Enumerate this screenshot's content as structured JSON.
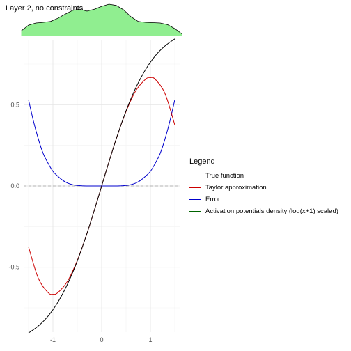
{
  "chart_data": {
    "type": "line",
    "title": "Layer 2, no constraints",
    "xlabel": "",
    "ylabel": "",
    "xlim": [
      -1.6,
      1.6
    ],
    "ylim": [
      -0.9,
      0.9
    ],
    "xticks": [
      -1,
      0,
      1
    ],
    "xtick_labels": [
      "-1",
      "0",
      "1"
    ],
    "yticks": [
      -0.5,
      0.0,
      0.5
    ],
    "ytick_labels": [
      "-0.5",
      "0.0",
      "0.5"
    ],
    "grid": true,
    "reference_line": {
      "y": 0,
      "style": "dashed"
    },
    "legend": {
      "title": "Legend",
      "placement": "right",
      "entries": [
        {
          "label": "True function",
          "color": "#000000"
        },
        {
          "label": "Taylor approximation",
          "color": "#cc0000"
        },
        {
          "label": "Error",
          "color": "#0000cc"
        },
        {
          "label": "Activation potentials density (log(x+1) scaled)",
          "color": "#006400"
        }
      ]
    },
    "series": [
      {
        "name": "True function",
        "color": "#000000",
        "x": [
          -1.5,
          -1.3,
          -1.1,
          -0.9,
          -0.7,
          -0.5,
          -0.3,
          -0.1,
          0.0,
          0.1,
          0.3,
          0.5,
          0.7,
          0.9,
          1.1,
          1.3,
          1.5
        ],
        "y": [
          -0.905,
          -0.862,
          -0.801,
          -0.716,
          -0.604,
          -0.462,
          -0.291,
          -0.1,
          0.0,
          0.1,
          0.291,
          0.462,
          0.604,
          0.716,
          0.801,
          0.862,
          0.905
        ]
      },
      {
        "name": "Taylor approximation",
        "color": "#cc0000",
        "x": [
          -1.5,
          -1.3,
          -1.1,
          -1.0,
          -0.9,
          -0.7,
          -0.5,
          -0.3,
          -0.1,
          0.0,
          0.1,
          0.3,
          0.5,
          0.7,
          0.9,
          1.0,
          1.1,
          1.3,
          1.5
        ],
        "y": [
          -0.375,
          -0.568,
          -0.656,
          -0.667,
          -0.657,
          -0.586,
          -0.458,
          -0.291,
          -0.1,
          0.0,
          0.1,
          0.291,
          0.458,
          0.586,
          0.657,
          0.667,
          0.656,
          0.568,
          0.375
        ]
      },
      {
        "name": "Error",
        "color": "#0000cc",
        "x": [
          -1.5,
          -1.4,
          -1.3,
          -1.2,
          -1.1,
          -1.0,
          -0.9,
          -0.8,
          -0.7,
          -0.6,
          -0.5,
          -0.4,
          -0.3,
          -0.2,
          0.0,
          0.2,
          0.3,
          0.4,
          0.5,
          0.6,
          0.7,
          0.8,
          0.9,
          1.0,
          1.1,
          1.2,
          1.3,
          1.4,
          1.5
        ],
        "y": [
          0.53,
          0.4,
          0.29,
          0.2,
          0.14,
          0.09,
          0.06,
          0.035,
          0.018,
          0.008,
          0.003,
          0.001,
          0.0,
          0.0,
          0.0,
          0.0,
          0.0,
          0.001,
          0.003,
          0.008,
          0.018,
          0.035,
          0.06,
          0.09,
          0.14,
          0.2,
          0.29,
          0.4,
          0.53
        ]
      }
    ],
    "density_strip": {
      "name": "Activation potentials density (log(x+1) scaled)",
      "fill": "#90ee90",
      "stroke": "#000000",
      "x": [
        -1.65,
        -1.5,
        -1.35,
        -1.2,
        -1.05,
        -0.9,
        -0.75,
        -0.6,
        -0.45,
        -0.3,
        -0.15,
        0.0,
        0.15,
        0.3,
        0.45,
        0.6,
        0.75,
        0.9,
        1.05,
        1.2,
        1.35,
        1.5,
        1.65
      ],
      "y": [
        0.15,
        0.33,
        0.4,
        0.42,
        0.45,
        0.55,
        0.68,
        0.8,
        0.84,
        0.78,
        0.84,
        0.93,
        1.0,
        0.96,
        0.82,
        0.6,
        0.45,
        0.42,
        0.41,
        0.4,
        0.35,
        0.22,
        0.05
      ]
    }
  }
}
